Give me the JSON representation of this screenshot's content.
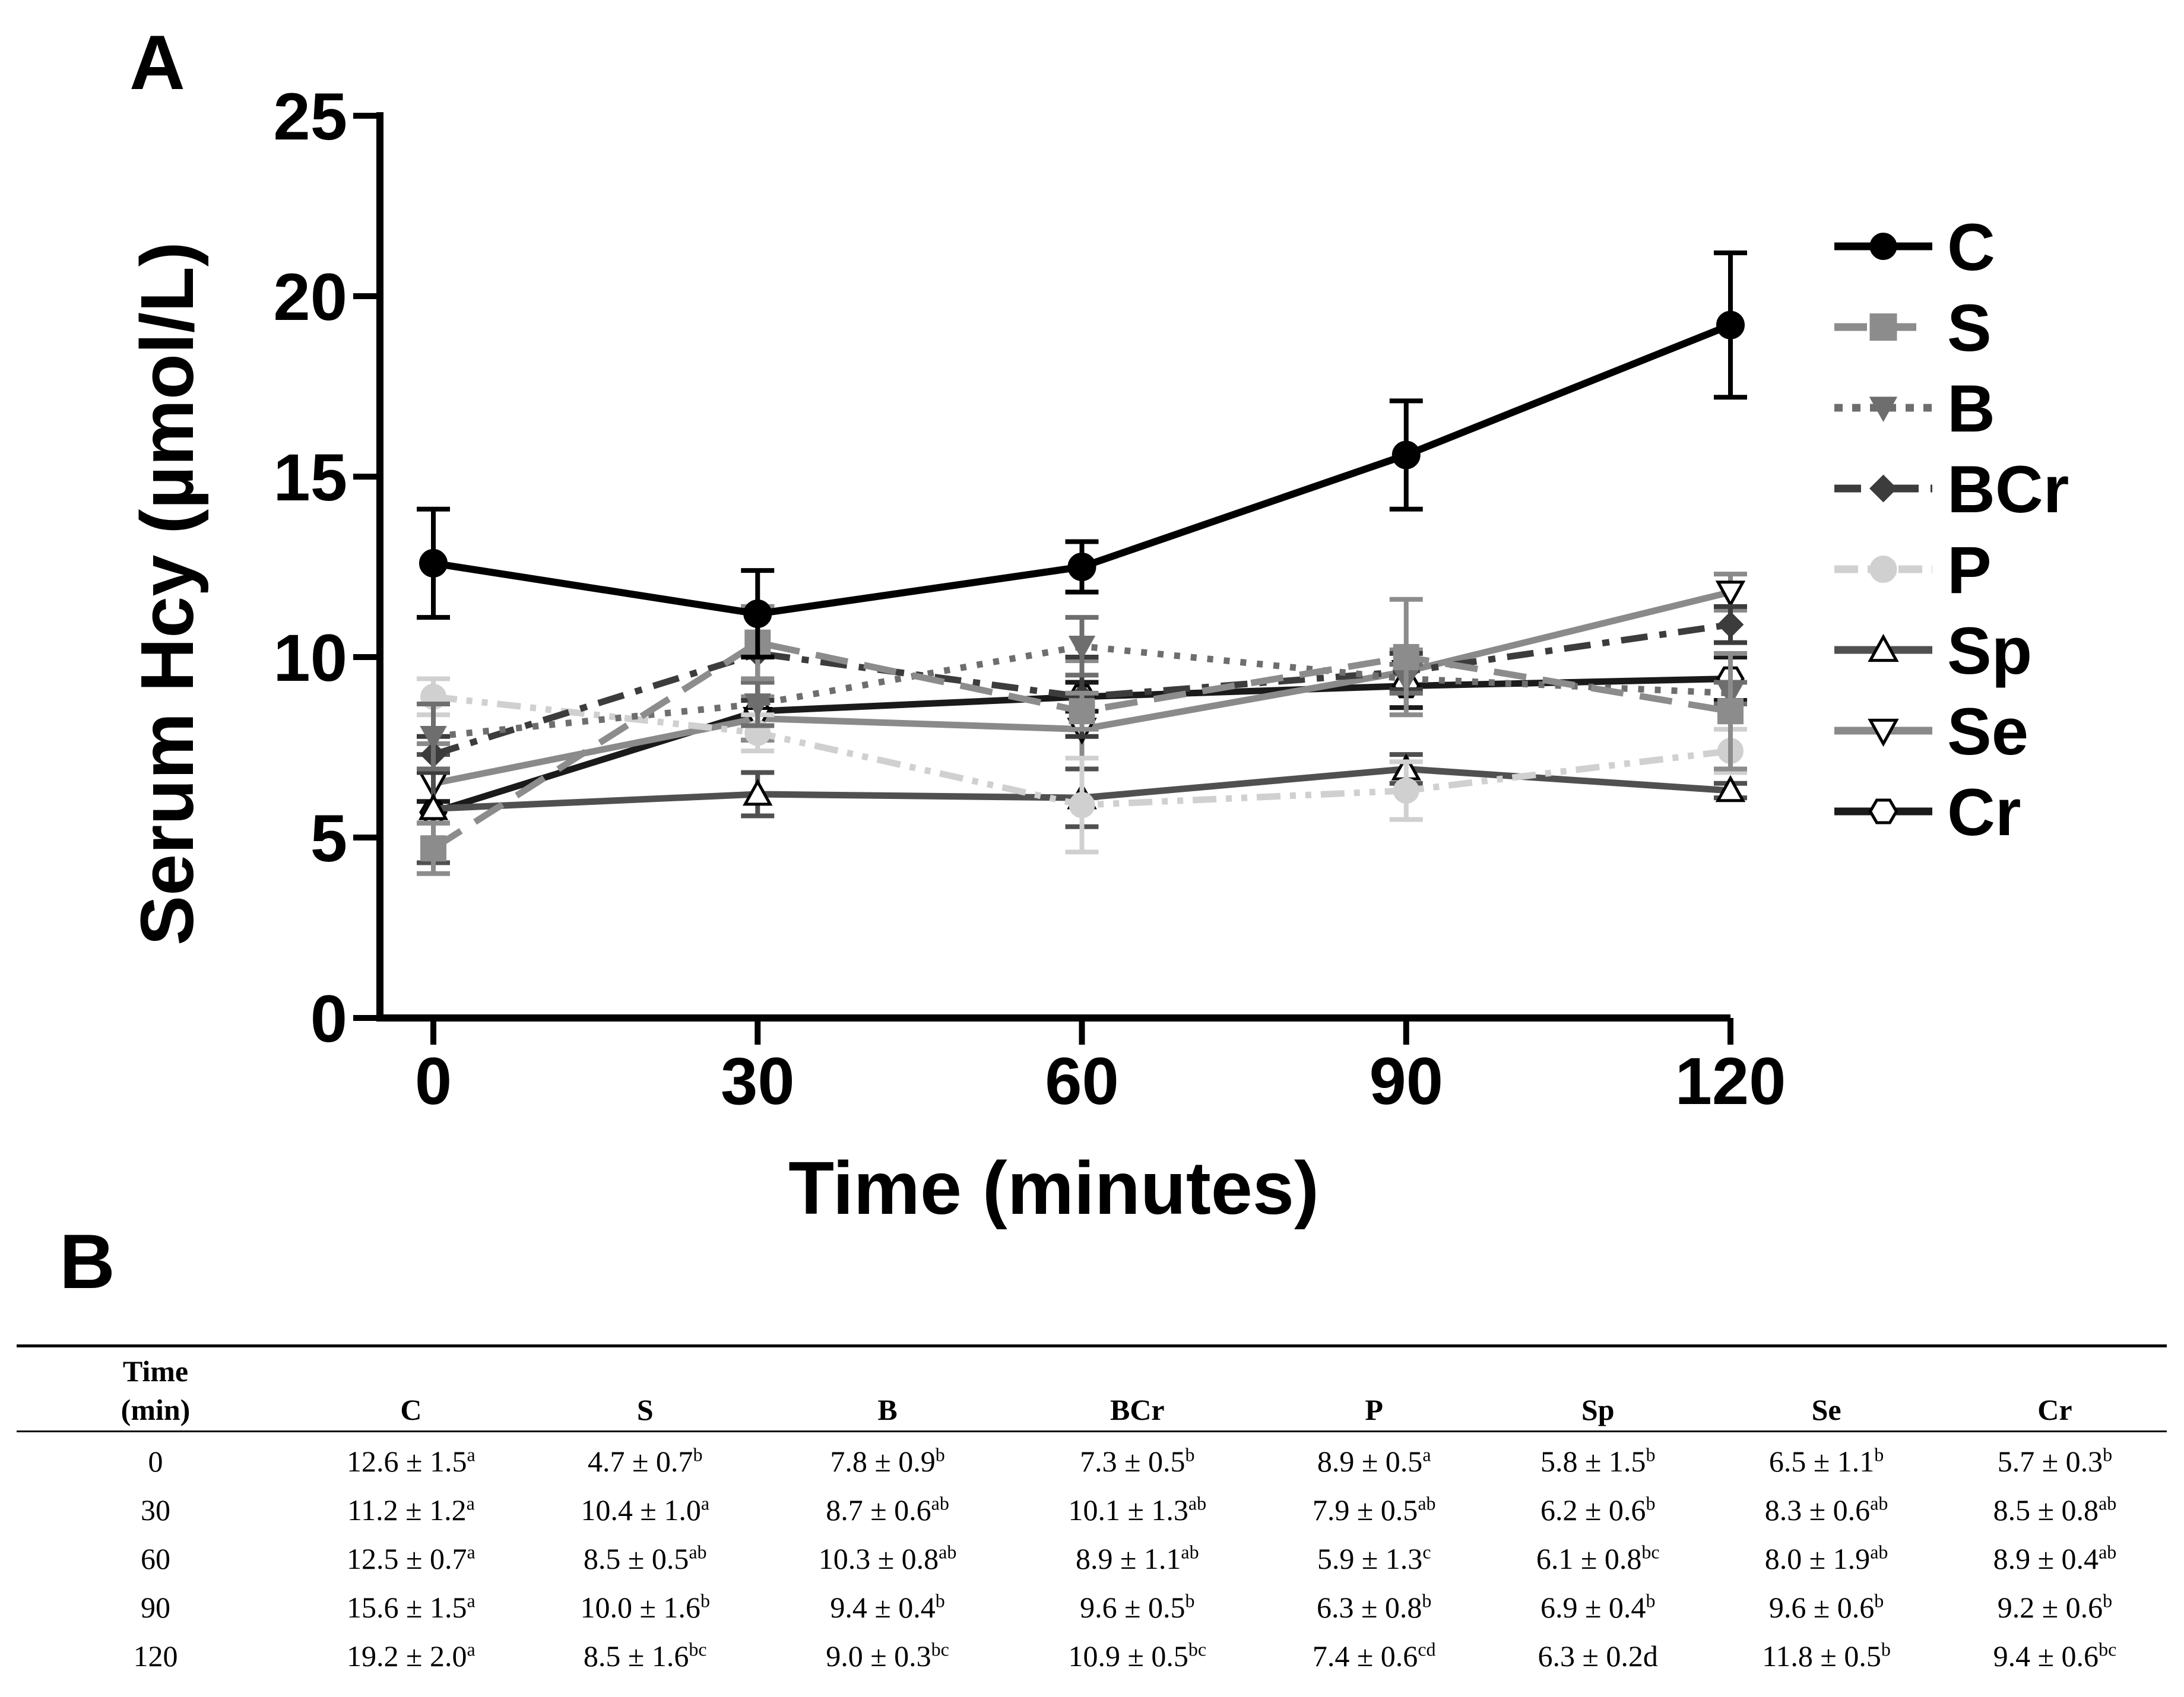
{
  "panel_a_label": "A",
  "panel_b_label": "B",
  "chart_data": {
    "type": "line",
    "title": "",
    "xlabel": "Time (minutes)",
    "ylabel": "Serum Hcy (µmol/L)",
    "x": [
      0,
      30,
      60,
      90,
      120
    ],
    "xticks": [
      "0",
      "30",
      "60",
      "90",
      "120"
    ],
    "yticks": [
      "0",
      "5",
      "10",
      "15",
      "20",
      "25"
    ],
    "ylim": [
      0,
      25
    ],
    "legend_position": "right",
    "series": [
      {
        "name": "C",
        "values": [
          12.6,
          11.2,
          12.5,
          15.6,
          19.2
        ],
        "errors": [
          1.5,
          1.2,
          0.7,
          1.5,
          2.0
        ],
        "color": "#000000",
        "dash": "solid",
        "marker": "circle-filled"
      },
      {
        "name": "S",
        "values": [
          4.7,
          10.4,
          8.5,
          10.0,
          8.5
        ],
        "errors": [
          0.7,
          1.0,
          0.5,
          1.6,
          1.6
        ],
        "color": "#8c8c8c",
        "dash": "long-dash",
        "marker": "square-filled"
      },
      {
        "name": "B",
        "values": [
          7.8,
          8.7,
          10.3,
          9.4,
          9.0
        ],
        "errors": [
          0.9,
          0.6,
          0.8,
          0.4,
          0.3
        ],
        "color": "#6e6e6e",
        "dash": "dotted",
        "marker": "triangle-down-filled"
      },
      {
        "name": "BCr",
        "values": [
          7.3,
          10.1,
          8.9,
          9.6,
          10.9
        ],
        "errors": [
          0.5,
          1.3,
          1.1,
          0.5,
          0.5
        ],
        "color": "#3c3c3c",
        "dash": "dash-dot",
        "marker": "diamond-filled"
      },
      {
        "name": "P",
        "values": [
          8.9,
          7.9,
          5.9,
          6.3,
          7.4
        ],
        "errors": [
          0.5,
          0.5,
          1.3,
          0.8,
          0.6
        ],
        "color": "#d0d0d0",
        "dash": "dash-dot-dot",
        "marker": "circle-filled"
      },
      {
        "name": "Sp",
        "values": [
          5.8,
          6.2,
          6.1,
          6.9,
          6.3
        ],
        "errors": [
          1.5,
          0.6,
          0.8,
          0.4,
          0.2
        ],
        "color": "#505050",
        "dash": "solid",
        "marker": "triangle-up-open"
      },
      {
        "name": "Se",
        "values": [
          6.5,
          8.3,
          8.0,
          9.6,
          11.8
        ],
        "errors": [
          1.1,
          0.6,
          1.9,
          0.6,
          0.5
        ],
        "color": "#8a8a8a",
        "dash": "solid",
        "marker": "triangle-down-open"
      },
      {
        "name": "Cr",
        "values": [
          5.7,
          8.5,
          8.9,
          9.2,
          9.4
        ],
        "errors": [
          0.3,
          0.8,
          0.4,
          0.6,
          0.6
        ],
        "color": "#1a1a1a",
        "dash": "solid",
        "marker": "hexagon-open"
      }
    ]
  },
  "table": {
    "time_header_line1": "Time",
    "time_header_line2": "(min)",
    "columns": [
      "C",
      "S",
      "B",
      "BCr",
      "P",
      "Sp",
      "Se",
      "Cr"
    ],
    "rows": [
      {
        "time": "0",
        "cells": [
          [
            "12.6 ± 1.5",
            "a"
          ],
          [
            "4.7 ± 0.7",
            "b"
          ],
          [
            "7.8 ± 0.9",
            "b"
          ],
          [
            "7.3 ± 0.5",
            "b"
          ],
          [
            "8.9 ± 0.5",
            "a"
          ],
          [
            "5.8 ± 1.5",
            "b"
          ],
          [
            "6.5 ± 1.1",
            "b"
          ],
          [
            "5.7 ± 0.3",
            "b"
          ]
        ]
      },
      {
        "time": "30",
        "cells": [
          [
            "11.2 ± 1.2",
            "a"
          ],
          [
            "10.4 ± 1.0",
            "a"
          ],
          [
            "8.7 ± 0.6",
            "ab"
          ],
          [
            "10.1 ± 1.3",
            "ab"
          ],
          [
            "7.9 ± 0.5",
            "ab"
          ],
          [
            "6.2 ± 0.6",
            "b"
          ],
          [
            "8.3 ± 0.6",
            "ab"
          ],
          [
            "8.5 ± 0.8",
            "ab"
          ]
        ]
      },
      {
        "time": "60",
        "cells": [
          [
            "12.5 ± 0.7",
            "a"
          ],
          [
            "8.5 ± 0.5",
            "ab"
          ],
          [
            "10.3 ± 0.8",
            "ab"
          ],
          [
            "8.9 ± 1.1",
            "ab"
          ],
          [
            "5.9 ± 1.3",
            "c"
          ],
          [
            "6.1 ± 0.8",
            "bc"
          ],
          [
            "8.0 ± 1.9",
            "ab"
          ],
          [
            "8.9 ± 0.4",
            "ab"
          ]
        ]
      },
      {
        "time": "90",
        "cells": [
          [
            "15.6 ± 1.5",
            "a"
          ],
          [
            "10.0 ± 1.6",
            "b"
          ],
          [
            "9.4 ± 0.4",
            "b"
          ],
          [
            "9.6 ± 0.5",
            "b"
          ],
          [
            "6.3 ± 0.8",
            "b"
          ],
          [
            "6.9 ± 0.4",
            "b"
          ],
          [
            "9.6 ± 0.6",
            "b"
          ],
          [
            "9.2 ± 0.6",
            "b"
          ]
        ]
      },
      {
        "time": "120",
        "cells": [
          [
            "19.2 ± 2.0",
            "a"
          ],
          [
            "8.5 ± 1.6",
            "bc"
          ],
          [
            "9.0 ± 0.3",
            "bc"
          ],
          [
            "10.9 ± 0.5",
            "bc"
          ],
          [
            "7.4 ± 0.6",
            "cd"
          ],
          [
            "6.3 ± 0.2d",
            ""
          ],
          [
            "11.8 ± 0.5",
            "b"
          ],
          [
            "9.4 ± 0.6",
            "bc"
          ]
        ]
      }
    ]
  }
}
